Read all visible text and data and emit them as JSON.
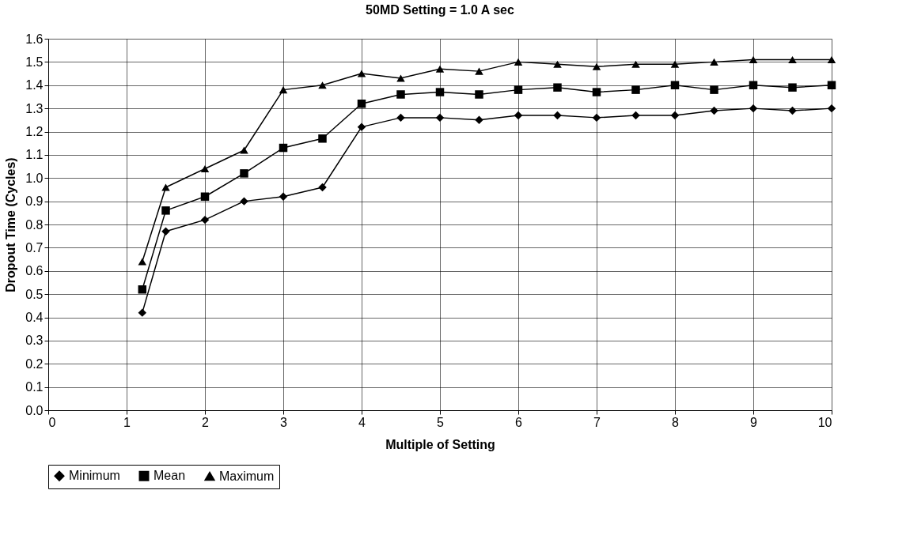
{
  "chart_data": {
    "type": "line",
    "title": "50MD Setting = 1.0 A sec",
    "xlabel": "Multiple of Setting",
    "ylabel": "Dropout Time (Cycles)",
    "x": [
      1.2,
      1.5,
      2,
      2.5,
      3,
      3.5,
      4,
      4.5,
      5,
      5.5,
      6,
      6.5,
      7,
      7.5,
      8,
      8.5,
      9,
      9.5,
      10
    ],
    "series": [
      {
        "name": "Minimum",
        "color": "#000000",
        "marker": "diamond",
        "values": [
          0.42,
          0.77,
          0.82,
          0.9,
          0.92,
          0.96,
          1.22,
          1.26,
          1.26,
          1.25,
          1.27,
          1.27,
          1.26,
          1.27,
          1.27,
          1.29,
          1.3,
          1.29,
          1.3
        ]
      },
      {
        "name": "Mean",
        "color": "#000000",
        "marker": "square",
        "values": [
          0.52,
          0.86,
          0.92,
          1.02,
          1.13,
          1.17,
          1.32,
          1.36,
          1.37,
          1.36,
          1.38,
          1.39,
          1.37,
          1.38,
          1.4,
          1.38,
          1.4,
          1.39,
          1.4
        ]
      },
      {
        "name": "Maximum",
        "color": "#000000",
        "marker": "triangle",
        "values": [
          0.64,
          0.96,
          1.04,
          1.12,
          1.38,
          1.4,
          1.45,
          1.43,
          1.47,
          1.46,
          1.5,
          1.49,
          1.48,
          1.49,
          1.49,
          1.5,
          1.51,
          1.51,
          1.51
        ]
      }
    ],
    "xlim": [
      0,
      10
    ],
    "xticks": [
      0,
      1,
      2,
      3,
      4,
      5,
      6,
      7,
      8,
      9,
      10
    ],
    "ylim": [
      0,
      1.6
    ],
    "yticks": [
      {
        "value": 0,
        "label": "0.0"
      },
      0.1,
      0.2,
      0.3,
      0.4,
      0.5,
      0.6,
      0.7,
      0.8,
      0.9,
      {
        "value": 1,
        "label": "1.0"
      },
      1.1,
      1.2,
      1.3,
      1.4,
      1.5,
      1.6
    ],
    "grid": true,
    "legend": "bottom",
    "line_style": "solid"
  }
}
